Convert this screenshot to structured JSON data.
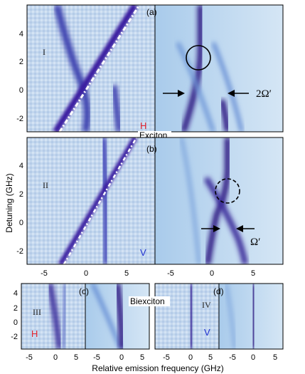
{
  "panels": {
    "a": "(a)",
    "b": "(b)",
    "c": "(c)",
    "d": "(d)"
  },
  "regions": {
    "I": "I",
    "II": "II",
    "III": "III",
    "IV": "IV"
  },
  "polarization": {
    "a": "H",
    "b": "V",
    "c": "H",
    "d": "V",
    "color_H": "#e0202a",
    "color_V": "#2030d0"
  },
  "section_labels": {
    "exciton": "Exciton",
    "biexciton": "Biexciton"
  },
  "rabi_labels": {
    "a": "2Ω′",
    "b": "Ω′"
  },
  "axes": {
    "ylabel": "Detuning (GHz)",
    "xlabel": "Relative emission frequency (GHz)",
    "y_ticks_top": [
      "4",
      "2",
      "0",
      "-2"
    ],
    "x_ticks_mid": [
      "-5",
      "0",
      "5",
      "-5",
      "0",
      "5"
    ],
    "y_ticks_bottom": [
      "4",
      "2",
      "0",
      "-2"
    ],
    "x_ticks_bottom": [
      "-5",
      "0",
      "5",
      "-5",
      "0",
      "5",
      "-5",
      "0",
      "5",
      "-5",
      "0",
      "5"
    ]
  },
  "colors": {
    "background": "#c9dcef",
    "light_blue": "#9fc4e8",
    "mid_blue": "#4d7fd0",
    "dark_line": "#2b1680",
    "white_line": "#ffffff"
  },
  "chart_data": [
    {
      "type": "heatmap",
      "panel": "(a)",
      "region": "I",
      "source": "measured",
      "xlim": [
        -8,
        8
      ],
      "ylim": [
        -3,
        5.5
      ],
      "lines": [
        {
          "kind": "laser-scatter",
          "points": [
            [
              -3,
              -3
            ],
            [
              6.5,
              5.5
            ]
          ]
        },
        {
          "kind": "emission",
          "points": [
            [
              -6,
              5
            ],
            [
              -3,
              0
            ],
            [
              -2.5,
              -3
            ]
          ]
        },
        {
          "kind": "emission",
          "points": [
            [
              2,
              -3
            ],
            [
              3,
              1
            ]
          ]
        }
      ]
    },
    {
      "type": "heatmap",
      "panel": "(a)",
      "source": "calculated",
      "xlim": [
        -8,
        8
      ],
      "ylim": [
        -3,
        5.5
      ],
      "markers": [
        {
          "shape": "circle-solid",
          "x": -1,
          "y": 2.3
        }
      ],
      "rabi_splitting_at_y": 0
    },
    {
      "type": "heatmap",
      "panel": "(b)",
      "region": "II",
      "source": "measured",
      "xlim": [
        -8,
        8
      ],
      "ylim": [
        -3,
        5.5
      ],
      "lines": [
        {
          "kind": "laser-scatter",
          "points": [
            [
              -3,
              -3
            ],
            [
              6,
              5.5
            ]
          ]
        },
        {
          "kind": "emission",
          "points": [
            [
              2,
              5.5
            ],
            [
              2.5,
              -1
            ]
          ]
        }
      ]
    },
    {
      "type": "heatmap",
      "panel": "(b)",
      "source": "calculated",
      "xlim": [
        -8,
        8
      ],
      "ylim": [
        -3,
        5.5
      ],
      "markers": [
        {
          "shape": "circle-dashed",
          "x": 2,
          "y": 2
        }
      ],
      "rabi_splitting_at_y": -0.5
    },
    {
      "type": "heatmap",
      "panel": "(c)",
      "region": "III",
      "source": "measured",
      "xlim": [
        -7,
        8
      ],
      "ylim": [
        -4,
        5
      ]
    },
    {
      "type": "heatmap",
      "panel": "(c)",
      "source": "calculated",
      "xlim": [
        -7,
        8
      ],
      "ylim": [
        -4,
        5
      ]
    },
    {
      "type": "heatmap",
      "panel": "(d)",
      "region": "IV",
      "source": "measured",
      "xlim": [
        -7,
        8
      ],
      "ylim": [
        -4,
        5
      ]
    },
    {
      "type": "heatmap",
      "panel": "(d)",
      "source": "calculated",
      "xlim": [
        -7,
        8
      ],
      "ylim": [
        -4,
        5
      ]
    }
  ]
}
